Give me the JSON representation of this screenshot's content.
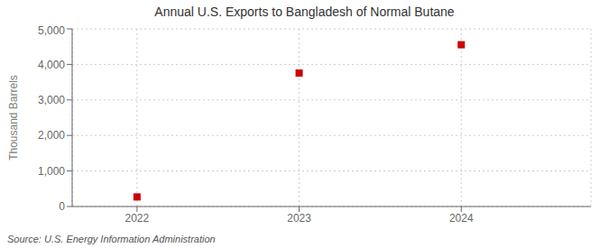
{
  "chart_data": {
    "type": "scatter",
    "title": "Annual U.S. Exports to Bangladesh of Normal Butane",
    "ylabel": "Thousand Barrels",
    "annotations": [
      "Source: U.S. Energy Information Administration"
    ],
    "x": [
      2022,
      2023,
      2024
    ],
    "values": [
      270,
      3757,
      4553
    ],
    "color": "#cc0000",
    "marker": "square",
    "xlim": [
      2021.6,
      2024.8
    ],
    "xticks": [
      2022,
      2023,
      2024
    ],
    "ylim": [
      0,
      5000
    ],
    "yticks": [
      0,
      {
        "value": 1000,
        "label": "1,000"
      },
      {
        "value": 2000,
        "label": "2,000"
      },
      {
        "value": 3000,
        "label": "3,000"
      },
      {
        "value": 4000,
        "label": "4,000"
      },
      {
        "value": 5000,
        "label": "5,000"
      }
    ],
    "grid": true
  }
}
